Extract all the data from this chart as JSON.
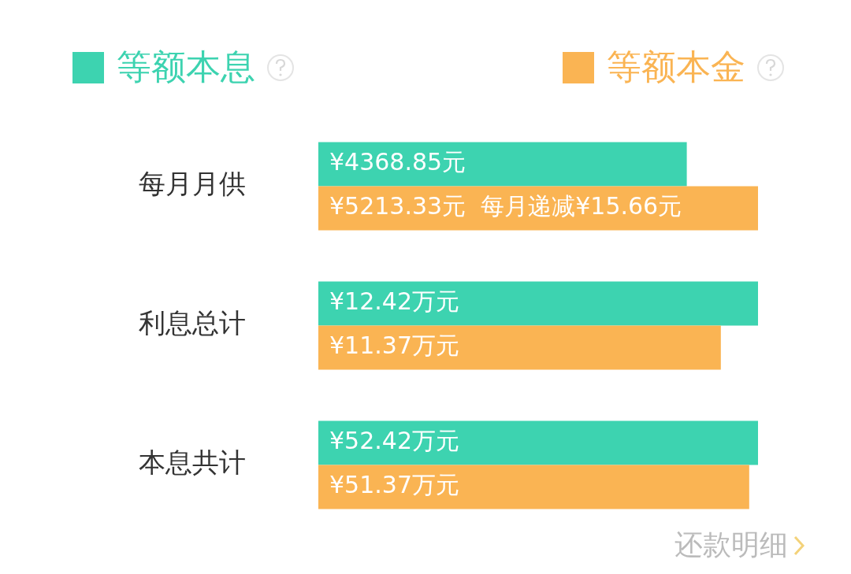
{
  "chart_data": [
    {
      "type": "bar",
      "orientation": "horizontal",
      "legend": "top",
      "categories": [
        "每月月供"
      ],
      "series": [
        {
          "name": "等额本息",
          "color": "#3dd3b0",
          "values": [
            4368.85
          ],
          "value_labels": [
            "¥4368.85元"
          ]
        },
        {
          "name": "等额本金",
          "color": "#fab453",
          "values": [
            5213.33
          ],
          "value_labels": [
            "¥5213.33元  每月递减¥15.66元"
          ]
        }
      ]
    },
    {
      "type": "bar",
      "orientation": "horizontal",
      "categories": [
        "利息总计"
      ],
      "series": [
        {
          "color": "#3dd3b0",
          "values": [
            12.42
          ],
          "value_labels": [
            "¥12.42万元"
          ]
        },
        {
          "color": "#fab453",
          "values": [
            11.37
          ],
          "value_labels": [
            "¥11.37万元"
          ]
        }
      ]
    },
    {
      "type": "bar",
      "orientation": "horizontal",
      "categories": [
        "本息共计"
      ],
      "series": [
        {
          "color": "#3dd3b0",
          "values": [
            52.42
          ],
          "value_labels": [
            "¥52.42万元"
          ]
        },
        {
          "color": "#fab453",
          "values": [
            51.37
          ],
          "value_labels": [
            "¥51.37万元"
          ]
        }
      ],
      "annotations": [
        "还款明细"
      ]
    }
  ]
}
